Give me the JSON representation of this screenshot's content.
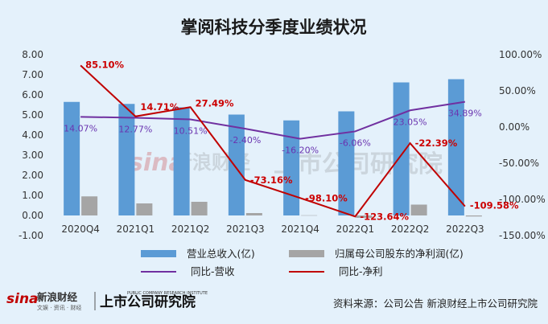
{
  "title": "掌阅科技分季度业绩状况",
  "source_text": "资料来源：公司公告 新浪财经上市公司研究院",
  "brand": {
    "sina_logo": "sina",
    "sina_name": "新浪财经",
    "sina_sub": "文娱 · 资讯 · 财经",
    "institute_name": "上市公司研究院",
    "institute_sub": "PUBLIC COMPANY RESEARCH INSTITUTE"
  },
  "colors": {
    "background": "#e4f1fb",
    "revenue_bar": "#5b9bd5",
    "net_profit_bar": "#a5a5a5",
    "revenue_yoy_line": "#7030a0",
    "net_profit_yoy_line": "#c00000"
  },
  "chart_data": {
    "type": "bar",
    "title": "掌阅科技分季度业绩状况",
    "categories": [
      "2020Q4",
      "2021Q1",
      "2021Q2",
      "2021Q3",
      "2021Q4",
      "2022Q1",
      "2022Q2",
      "2022Q3"
    ],
    "y_left": {
      "min": -1,
      "max": 8,
      "step": 1,
      "tick_labels": [
        "-1.00",
        "0.00",
        "1.00",
        "2.00",
        "3.00",
        "4.00",
        "5.00",
        "6.00",
        "7.00",
        "8.00"
      ]
    },
    "y_right": {
      "min": -150,
      "max": 100,
      "step": 50,
      "tick_labels": [
        "-150.00%",
        "-100.00%",
        "-50.00%",
        "0.00%",
        "50.00%",
        "100.00%"
      ]
    },
    "legend_position": "bottom",
    "grid": false,
    "series": [
      {
        "name": "营业总收入(亿)",
        "type": "bar",
        "axis": "left",
        "values": [
          5.65,
          5.55,
          5.38,
          5.02,
          4.73,
          5.18,
          6.62,
          6.78
        ]
      },
      {
        "name": "归属母公司股东的净利润(亿)",
        "type": "bar",
        "axis": "left",
        "values": [
          0.95,
          0.6,
          0.68,
          0.12,
          0.01,
          -0.12,
          0.54,
          -0.05
        ]
      },
      {
        "name": "同比-营收",
        "type": "line",
        "axis": "right",
        "values": [
          14.07,
          12.77,
          10.51,
          -2.4,
          -16.2,
          -6.06,
          23.05,
          34.89
        ],
        "labels": [
          "14.07%",
          "12.77%",
          "10.51%",
          "-2.40%",
          "-16.20%",
          "-6.06%",
          "23.05%",
          "34.89%"
        ]
      },
      {
        "name": "同比-净利",
        "type": "line",
        "axis": "right",
        "values": [
          85.1,
          14.71,
          27.49,
          -73.16,
          -98.1,
          -123.64,
          -22.39,
          -109.58
        ],
        "labels": [
          "85.10%",
          "14.71%",
          "27.49%",
          "-73.16%",
          "-98.10%",
          "-123.64%",
          "-22.39%",
          "-109.58%"
        ]
      }
    ]
  }
}
